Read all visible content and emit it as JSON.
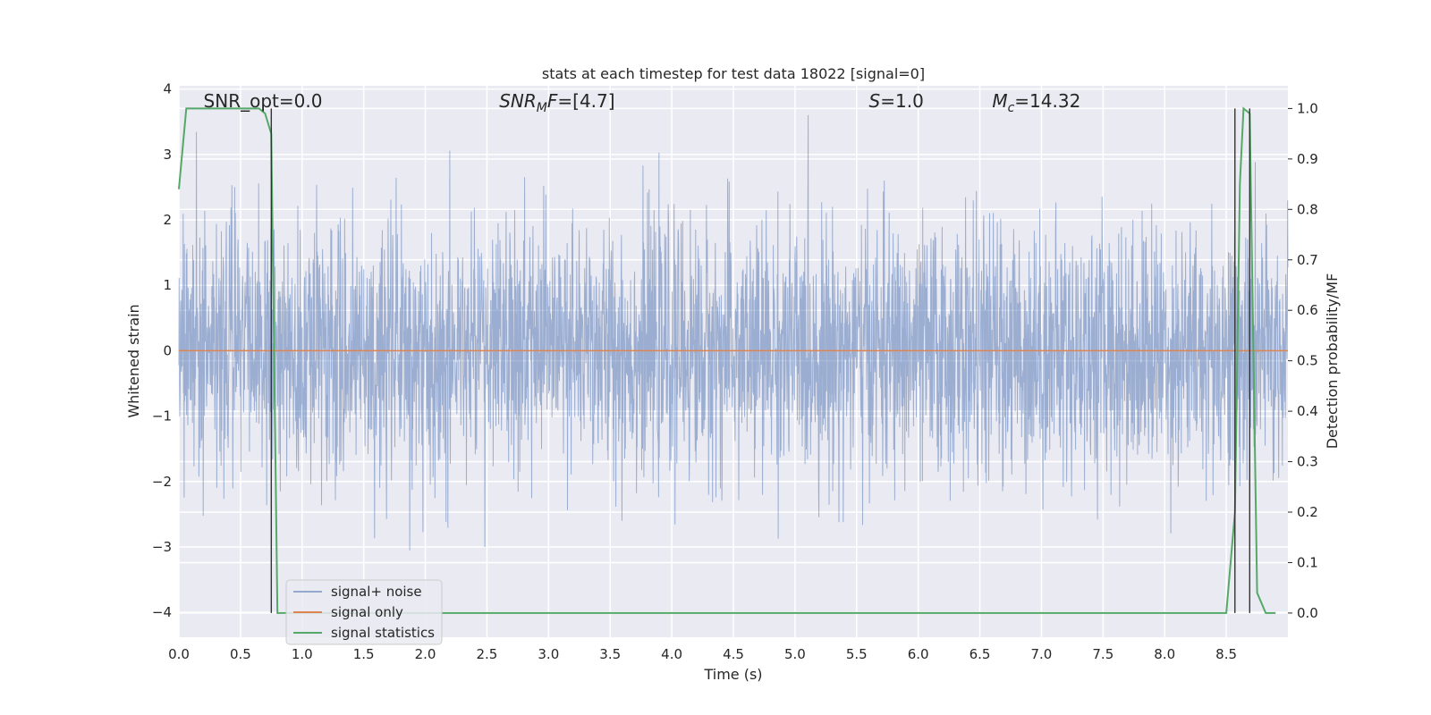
{
  "chart_data": {
    "type": "line",
    "title": "stats at each timestep for test data 18022 [signal=0]",
    "xlabel": "Time (s)",
    "ylabel": "Whitened strain",
    "y2label": "Detection probability/MF",
    "xlim": [
      0.0,
      9.0
    ],
    "ylim": [
      -4.38,
      4.05
    ],
    "y2lim": [
      -0.048,
      1.045
    ],
    "xticks": [
      "0.0",
      "0.5",
      "1.0",
      "1.5",
      "2.0",
      "2.5",
      "3.0",
      "3.5",
      "4.0",
      "4.5",
      "5.0",
      "5.5",
      "6.0",
      "6.5",
      "7.0",
      "7.5",
      "8.0",
      "8.5"
    ],
    "yticks": [
      "4",
      "3",
      "2",
      "1",
      "0",
      "−1",
      "−2",
      "−3",
      "−4"
    ],
    "y2ticks": [
      "1.0",
      "0.9",
      "0.8",
      "0.7",
      "0.6",
      "0.5",
      "0.4",
      "0.3",
      "0.2",
      "0.1",
      "0.0"
    ],
    "grid": true,
    "legend_placement": "lower-left",
    "annotations": [
      {
        "x": 0.2,
        "text": "SNR_opt=0.0"
      },
      {
        "x": 2.6,
        "text": "SNR_MF=[4.7]"
      },
      {
        "x": 5.6,
        "text": "S=1.0"
      },
      {
        "x": 6.6,
        "text": "M_c=14.32"
      }
    ],
    "vlines": [
      0.75,
      8.57,
      8.69
    ],
    "series": [
      {
        "name": "signal+ noise",
        "color": "#4c72b0",
        "alpha": 0.5,
        "axis": "left",
        "note_noise": "Gaussian-like whitened noise, approx. mean 0, bulk between -1.8 and 1.8, spikes reaching about +/-3.6"
      },
      {
        "name": "signal only",
        "color": "#dd8452",
        "axis": "left",
        "x": [
          0.0,
          9.0
        ],
        "y": [
          0.0,
          0.0
        ]
      },
      {
        "name": "signal statistics",
        "color": "#55a868",
        "axis": "right",
        "x": [
          0.0,
          0.06,
          0.1,
          0.65,
          0.7,
          0.75,
          0.8,
          0.85,
          4.4,
          8.45,
          8.5,
          8.57,
          8.61,
          8.64,
          8.69,
          8.75,
          8.82,
          8.9
        ],
        "y": [
          0.84,
          1.0,
          1.0,
          1.0,
          0.99,
          0.95,
          0.0,
          0.0,
          0.0,
          0.0,
          0.0,
          0.2,
          0.85,
          1.0,
          0.99,
          0.04,
          0.0,
          0.0
        ]
      }
    ]
  }
}
